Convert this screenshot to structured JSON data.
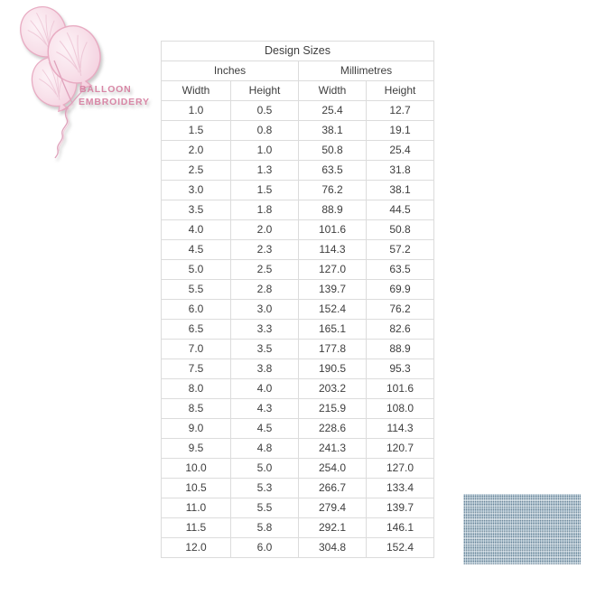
{
  "logo": {
    "line1": "BALLOON",
    "line2": "EMBROIDERY"
  },
  "table": {
    "title": "Design Sizes",
    "group_headers": [
      {
        "label": "Inches"
      },
      {
        "label": "Millimetres"
      }
    ],
    "column_headers": [
      "Width",
      "Height",
      "Width",
      "Height"
    ],
    "rows": [
      [
        "1.0",
        "0.5",
        "25.4",
        "12.7"
      ],
      [
        "1.5",
        "0.8",
        "38.1",
        "19.1"
      ],
      [
        "2.0",
        "1.0",
        "50.8",
        "25.4"
      ],
      [
        "2.5",
        "1.3",
        "63.5",
        "31.8"
      ],
      [
        "3.0",
        "1.5",
        "76.2",
        "38.1"
      ],
      [
        "3.5",
        "1.8",
        "88.9",
        "44.5"
      ],
      [
        "4.0",
        "2.0",
        "101.6",
        "50.8"
      ],
      [
        "4.5",
        "2.3",
        "114.3",
        "57.2"
      ],
      [
        "5.0",
        "2.5",
        "127.0",
        "63.5"
      ],
      [
        "5.5",
        "2.8",
        "139.7",
        "69.9"
      ],
      [
        "6.0",
        "3.0",
        "152.4",
        "76.2"
      ],
      [
        "6.5",
        "3.3",
        "165.1",
        "82.6"
      ],
      [
        "7.0",
        "3.5",
        "177.8",
        "88.9"
      ],
      [
        "7.5",
        "3.8",
        "190.5",
        "95.3"
      ],
      [
        "8.0",
        "4.0",
        "203.2",
        "101.6"
      ],
      [
        "8.5",
        "4.3",
        "215.9",
        "108.0"
      ],
      [
        "9.0",
        "4.5",
        "228.6",
        "114.3"
      ],
      [
        "9.5",
        "4.8",
        "241.3",
        "120.7"
      ],
      [
        "10.0",
        "5.0",
        "254.0",
        "127.0"
      ],
      [
        "10.5",
        "5.3",
        "266.7",
        "133.4"
      ],
      [
        "11.0",
        "5.5",
        "279.4",
        "139.7"
      ],
      [
        "11.5",
        "5.8",
        "292.1",
        "146.1"
      ],
      [
        "12.0",
        "6.0",
        "304.8",
        "152.4"
      ]
    ]
  },
  "colors": {
    "logo-pink": "#d887a6",
    "balloon-fill": "#f8e1ea",
    "balloon-stroke": "#e8abc2",
    "table-border": "#dcdcdc",
    "table-text": "#3e3e3e",
    "swatch-base": "#93acbd"
  }
}
